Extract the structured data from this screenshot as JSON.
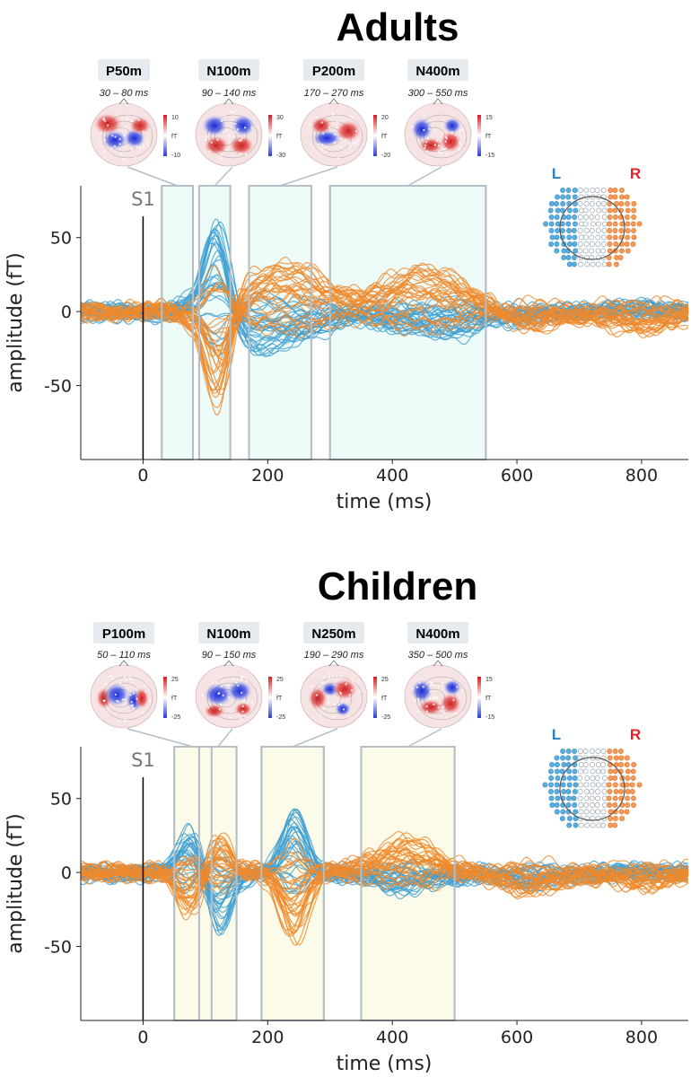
{
  "chart_data": [
    {
      "type": "line",
      "title": "Adults",
      "xlabel": "time (ms)",
      "ylabel": "amplitude (fT)",
      "xlim": [
        -100,
        875
      ],
      "ylim": [
        -100,
        85
      ],
      "xticks": [
        0,
        200,
        400,
        600,
        800
      ],
      "yticks": [
        50,
        0,
        -50
      ],
      "stimulus_marker": {
        "label": "S1",
        "x": 0
      },
      "highlight_color": "#eafaf8",
      "windows": [
        {
          "label": "P50m",
          "range_text": "30 – 80 ms",
          "start": 30,
          "end": 80,
          "colorbar": {
            "max": "10",
            "unit": "fT",
            "min": "-10"
          }
        },
        {
          "label": "N100m",
          "range_text": "90 – 140 ms",
          "start": 90,
          "end": 140,
          "colorbar": {
            "max": "30",
            "unit": "fT",
            "min": "-30"
          }
        },
        {
          "label": "P200m",
          "range_text": "170 – 270 ms",
          "start": 170,
          "end": 270,
          "colorbar": {
            "max": "20",
            "unit": "fT",
            "min": "-20"
          }
        },
        {
          "label": "N400m",
          "range_text": "300 – 550 ms",
          "start": 300,
          "end": 550,
          "colorbar": {
            "max": "15",
            "unit": "fT",
            "min": "-15"
          }
        }
      ],
      "hemispheres": {
        "left": "L",
        "right": "R"
      },
      "series": [
        {
          "name": "L",
          "color": "#3fa0d4",
          "peaks": [
            [
              30,
              -3
            ],
            [
              70,
              8
            ],
            [
              120,
              70
            ],
            [
              175,
              -22
            ],
            [
              260,
              -12
            ],
            [
              420,
              -8
            ],
            [
              500,
              -12
            ],
            [
              620,
              -4
            ],
            [
              800,
              3
            ]
          ]
        },
        {
          "name": "R",
          "color": "#f08a2c",
          "peaks": [
            [
              30,
              3
            ],
            [
              70,
              -6
            ],
            [
              120,
              -72
            ],
            [
              175,
              20
            ],
            [
              260,
              25
            ],
            [
              420,
              22
            ],
            [
              500,
              18
            ],
            [
              620,
              -10
            ],
            [
              800,
              -12
            ]
          ]
        }
      ]
    },
    {
      "type": "line",
      "title": "Children",
      "xlabel": "time (ms)",
      "ylabel": "amplitude (fT)",
      "xlim": [
        -100,
        875
      ],
      "ylim": [
        -100,
        85
      ],
      "xticks": [
        0,
        200,
        400,
        600,
        800
      ],
      "yticks": [
        50,
        0,
        -50
      ],
      "stimulus_marker": {
        "label": "S1",
        "x": 0
      },
      "highlight_color": "#fcfae6",
      "windows": [
        {
          "label": "P100m",
          "range_text": "50 – 110 ms",
          "start": 50,
          "end": 110,
          "colorbar": {
            "max": "25",
            "unit": "fT",
            "min": "-25"
          }
        },
        {
          "label": "N100m",
          "range_text": "90 – 150 ms",
          "start": 90,
          "end": 150,
          "colorbar": {
            "max": "25",
            "unit": "fT",
            "min": "-25"
          }
        },
        {
          "label": "N250m",
          "range_text": "190 – 290 ms",
          "start": 190,
          "end": 290,
          "colorbar": {
            "max": "25",
            "unit": "fT",
            "min": "-25"
          }
        },
        {
          "label": "N400m",
          "range_text": "350 – 500 ms",
          "start": 350,
          "end": 500,
          "colorbar": {
            "max": "15",
            "unit": "fT",
            "min": "-15"
          }
        }
      ],
      "hemispheres": {
        "left": "L",
        "right": "R"
      },
      "series": [
        {
          "name": "L",
          "color": "#3fa0d4",
          "peaks": [
            [
              75,
              32
            ],
            [
              120,
              -40
            ],
            [
              240,
              42
            ],
            [
              420,
              -10
            ],
            [
              620,
              -6
            ],
            [
              800,
              2
            ]
          ]
        },
        {
          "name": "R",
          "color": "#f08a2c",
          "peaks": [
            [
              75,
              -30
            ],
            [
              120,
              24
            ],
            [
              240,
              -48
            ],
            [
              420,
              22
            ],
            [
              620,
              -14
            ],
            [
              800,
              -10
            ]
          ]
        }
      ]
    }
  ]
}
